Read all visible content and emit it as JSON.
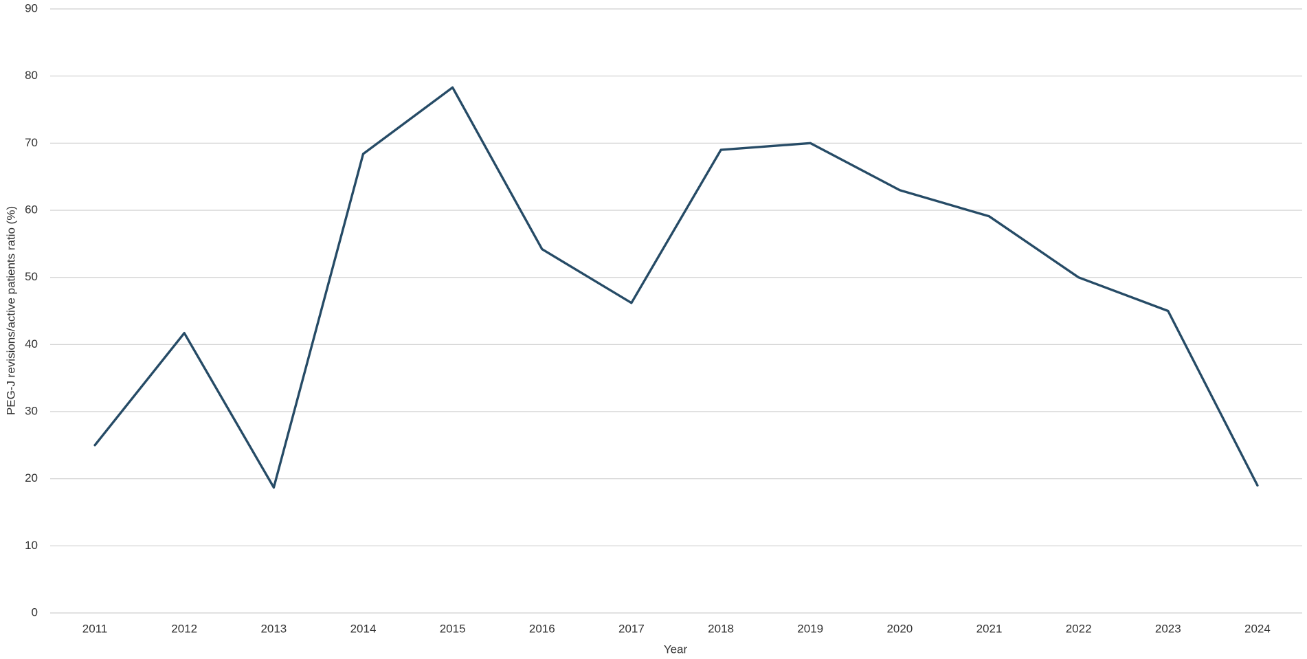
{
  "chart_data": {
    "type": "line",
    "x_label": "Year",
    "y_label": "PEG-J revisions/active patients ratio (%)",
    "categories": [
      "2011",
      "2012",
      "2013",
      "2014",
      "2015",
      "2016",
      "2017",
      "2018",
      "2019",
      "2020",
      "2021",
      "2022",
      "2023",
      "2024"
    ],
    "values": [
      25,
      41.7,
      18.7,
      68.4,
      78.3,
      54.2,
      46.2,
      69,
      70,
      63,
      59.1,
      50,
      45,
      19
    ],
    "color": "#264b66",
    "ylim": [
      0,
      90
    ],
    "yticks": [
      0,
      10,
      20,
      30,
      40,
      50,
      60,
      70,
      80,
      90
    ],
    "grid": true
  }
}
